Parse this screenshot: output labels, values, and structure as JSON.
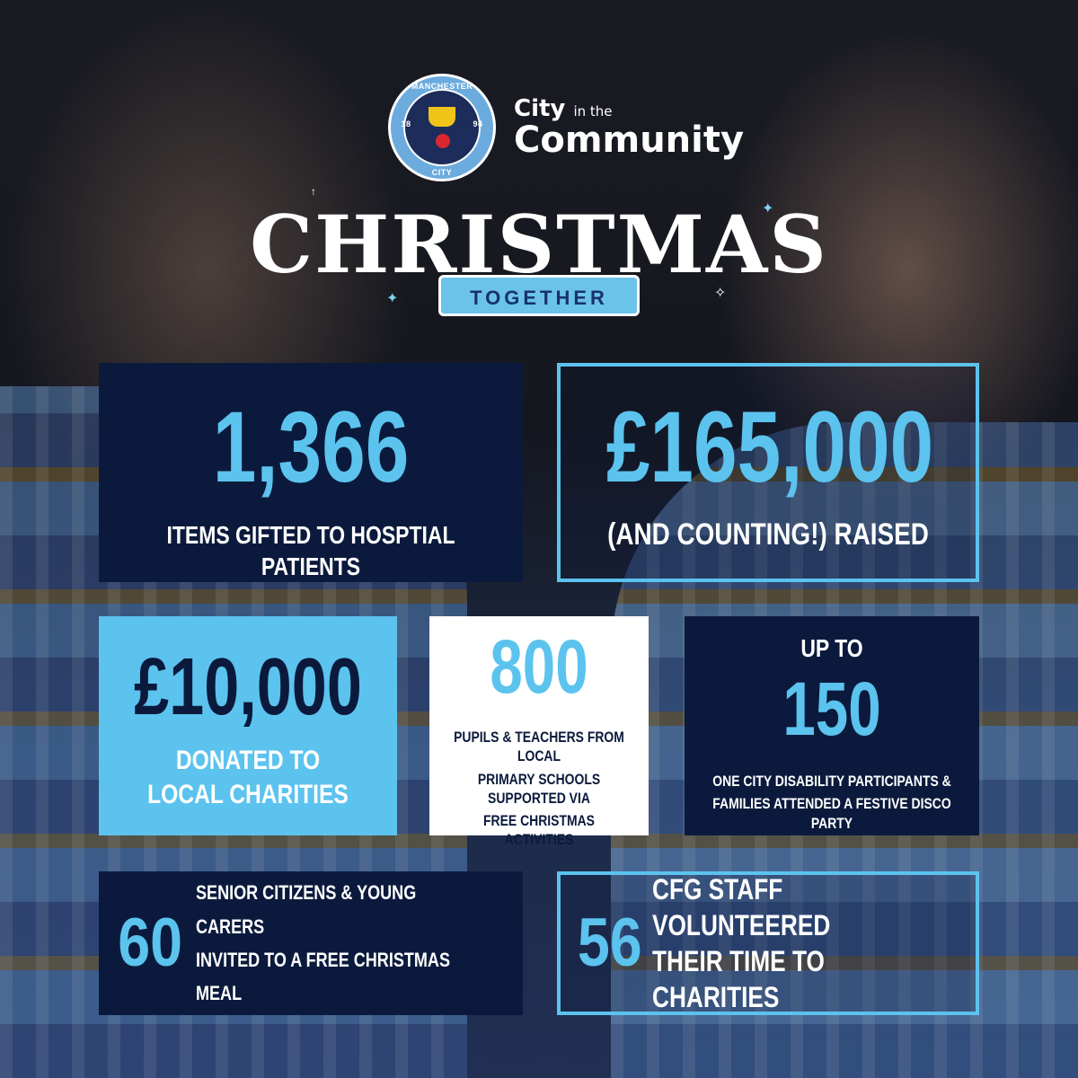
{
  "logo": {
    "crest_top": "MANCHESTER",
    "crest_bottom": "CITY",
    "crest_left_year": "18",
    "crest_right_year": "94",
    "programme_line1": "City",
    "programme_line1_small": "in the",
    "programme_line2": "Community"
  },
  "header": {
    "title": "CHRISTMAS",
    "ribbon": "TOGETHER"
  },
  "stats": {
    "items": {
      "value": "1,366",
      "caption": "ITEMS GIFTED TO HOSPTIAL PATIENTS"
    },
    "raised": {
      "value": "£165,000",
      "caption": "(AND COUNTING!) RAISED"
    },
    "donated": {
      "value": "£10,000",
      "caption_1": "DONATED TO",
      "caption_2": "LOCAL CHARITIES"
    },
    "pupils": {
      "value": "800",
      "caption_1": "PUPILS & TEACHERS FROM LOCAL",
      "caption_2": "PRIMARY SCHOOLS SUPPORTED VIA",
      "caption_3": "FREE CHRISTMAS ACTIVITIES"
    },
    "disability": {
      "prefix": "UP TO",
      "value": "150",
      "caption_1": "ONE CITY DISABILITY PARTICIPANTS &",
      "caption_2": "FAMILIES ATTENDED A FESTIVE DISCO PARTY"
    },
    "seniors": {
      "value": "60",
      "caption_1": "SENIOR CITIZENS & YOUNG CARERS",
      "caption_2": "INVITED TO A FREE CHRISTMAS MEAL"
    },
    "staff": {
      "value": "56",
      "caption_1": "CFG STAFF VOLUNTEERED",
      "caption_2": "THEIR TIME TO CHARITIES"
    }
  },
  "colors": {
    "navy": "#0b1a3c",
    "sky_blue": "#5bc3ee",
    "white": "#ffffff"
  }
}
